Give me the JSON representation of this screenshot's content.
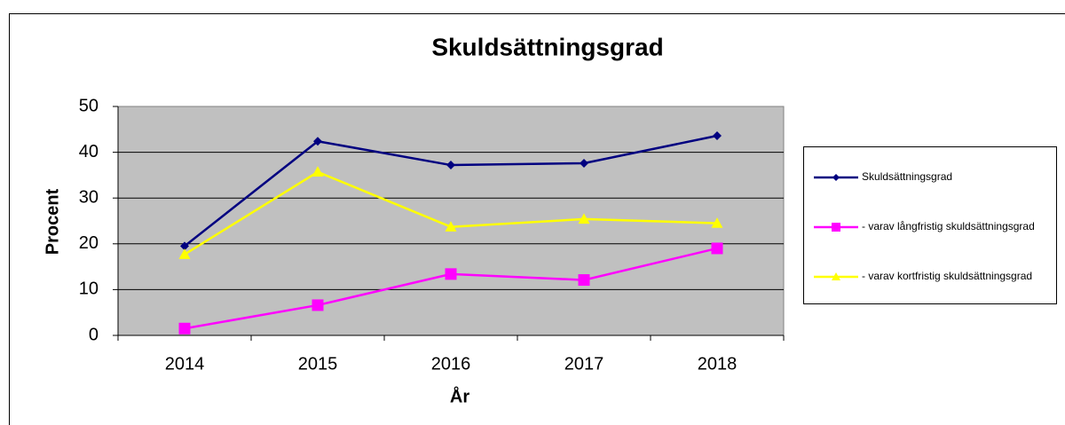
{
  "chart_data": {
    "type": "line",
    "title": "Skuldsättningsgrad",
    "x_label": "År",
    "y_label": "Procent",
    "categories": [
      "2014",
      "2015",
      "2016",
      "2017",
      "2018"
    ],
    "series": [
      {
        "name": "Skuldsättningsgrad",
        "color": "#000080",
        "marker": "diamond",
        "values": [
          19.5,
          42.4,
          37.2,
          37.6,
          43.6
        ]
      },
      {
        "name": "- varav långfristig skuldsättningsgrad",
        "color": "#ff00ff",
        "marker": "square",
        "values": [
          1.5,
          6.6,
          13.4,
          12.1,
          19.0
        ]
      },
      {
        "name": "- varav kortfristig skuldsättningsgrad",
        "color": "#ffff00",
        "marker": "triangle",
        "values": [
          17.7,
          35.7,
          23.7,
          25.4,
          24.5
        ]
      }
    ],
    "ylim": [
      0,
      50
    ],
    "yticks": [
      0,
      10,
      20,
      30,
      40,
      50
    ],
    "grid": true,
    "legend": "right"
  }
}
